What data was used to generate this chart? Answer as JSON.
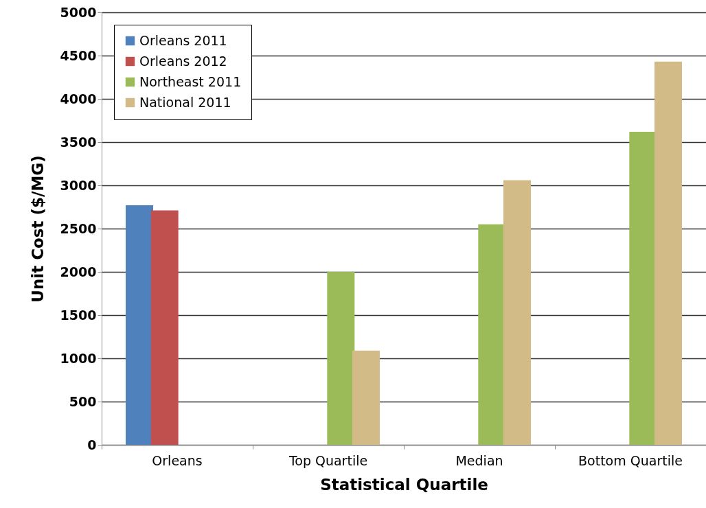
{
  "chart_data": {
    "type": "bar",
    "xlabel": "Statistical Quartile",
    "ylabel": "Unit Cost ($/MG)",
    "categories": [
      "Orleans",
      "Top Quartile",
      "Median",
      "Bottom Quartile"
    ],
    "series": [
      {
        "name": "Orleans 2011",
        "color": "#4f81bd",
        "values": [
          2770,
          null,
          null,
          null
        ]
      },
      {
        "name": "Orleans 2012",
        "color": "#c0504d",
        "values": [
          2710,
          null,
          null,
          null
        ]
      },
      {
        "name": "Northeast 2011",
        "color": "#9bbb59",
        "values": [
          null,
          2000,
          2550,
          3620
        ]
      },
      {
        "name": "National 2011",
        "color": "#d2bb87",
        "values": [
          null,
          1090,
          3060,
          4430
        ]
      }
    ],
    "ylim": [
      0,
      5000
    ],
    "yticks": [
      0,
      500,
      1000,
      1500,
      2000,
      2500,
      3000,
      3500,
      4000,
      4500,
      5000
    ],
    "grid": "y",
    "legend": "top left"
  }
}
